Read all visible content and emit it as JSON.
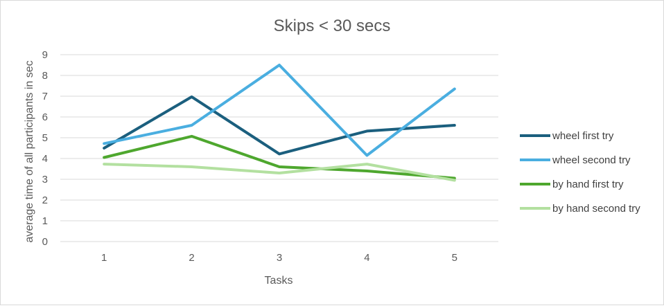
{
  "chart_data": {
    "type": "line",
    "title": "Skips < 30 secs",
    "xlabel": "Tasks",
    "ylabel": "average time of all participants in sec",
    "categories": [
      "1",
      "2",
      "3",
      "4",
      "5"
    ],
    "ylim": [
      0,
      9
    ],
    "yticks": [
      "0",
      "1",
      "2",
      "3",
      "4",
      "5",
      "6",
      "7",
      "8",
      "9"
    ],
    "grid": true,
    "legend_position": "right",
    "series": [
      {
        "name": "wheel first try",
        "color": "#1b5f7e",
        "values": [
          4.5,
          6.97,
          4.22,
          5.32,
          5.6
        ]
      },
      {
        "name": "wheel second try",
        "color": "#4aaee0",
        "values": [
          4.72,
          5.6,
          8.5,
          4.15,
          7.35
        ]
      },
      {
        "name": "by hand first try",
        "color": "#4ea72e",
        "values": [
          4.05,
          5.07,
          3.6,
          3.4,
          3.05
        ]
      },
      {
        "name": "by hand second try",
        "color": "#b3e0a0",
        "values": [
          3.73,
          3.6,
          3.3,
          3.73,
          2.95
        ]
      }
    ]
  }
}
